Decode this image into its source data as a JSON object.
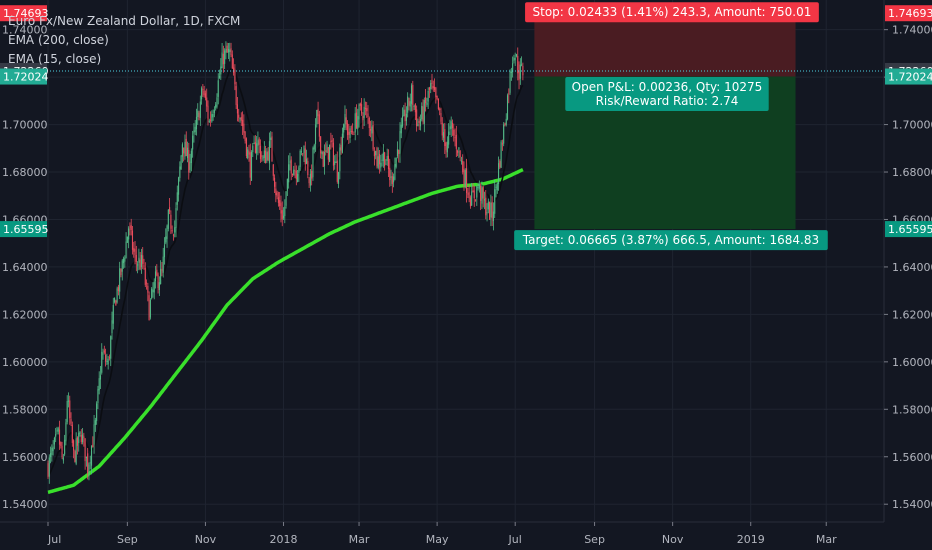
{
  "legend": {
    "symbol": "Euro Fx/New Zealand Dollar, 1D, FXCM",
    "ema_long": "EMA (200, close)",
    "ema_short": "EMA (15, close)"
  },
  "chart_data": {
    "type": "candlestick",
    "symbol": "EUR/NZD",
    "interval": "1D",
    "ylim": [
      1.5325,
      1.7525
    ],
    "y_ticks": [
      "1.54000",
      "1.56000",
      "1.58000",
      "1.60000",
      "1.62000",
      "1.64000",
      "1.66000",
      "1.68000",
      "1.70000",
      "1.72000",
      "1.74000"
    ],
    "x_ticks": [
      "Jul",
      "Sep",
      "Nov",
      "2018",
      "Mar",
      "May",
      "Jul",
      "Sep",
      "Nov",
      "2019",
      "Mar"
    ],
    "x_tick_index": [
      0,
      62,
      123,
      184,
      243,
      304,
      365,
      427,
      488,
      549,
      608
    ],
    "last_bar_index": 371,
    "price_line": 1.7226,
    "anchors": [
      {
        "i": 0,
        "p": 1.556
      },
      {
        "i": 8,
        "p": 1.569
      },
      {
        "i": 12,
        "p": 1.556
      },
      {
        "i": 15,
        "p": 1.585
      },
      {
        "i": 20,
        "p": 1.56
      },
      {
        "i": 26,
        "p": 1.57
      },
      {
        "i": 31,
        "p": 1.556
      },
      {
        "i": 37,
        "p": 1.573
      },
      {
        "i": 42,
        "p": 1.603
      },
      {
        "i": 47,
        "p": 1.599
      },
      {
        "i": 52,
        "p": 1.625
      },
      {
        "i": 58,
        "p": 1.64
      },
      {
        "i": 63,
        "p": 1.657
      },
      {
        "i": 68,
        "p": 1.643
      },
      {
        "i": 74,
        "p": 1.641
      },
      {
        "i": 79,
        "p": 1.622
      },
      {
        "i": 84,
        "p": 1.634
      },
      {
        "i": 89,
        "p": 1.637
      },
      {
        "i": 94,
        "p": 1.66
      },
      {
        "i": 99,
        "p": 1.657
      },
      {
        "i": 105,
        "p": 1.693
      },
      {
        "i": 110,
        "p": 1.684
      },
      {
        "i": 116,
        "p": 1.7
      },
      {
        "i": 121,
        "p": 1.715
      },
      {
        "i": 126,
        "p": 1.701
      },
      {
        "i": 131,
        "p": 1.712
      },
      {
        "i": 137,
        "p": 1.729
      },
      {
        "i": 142,
        "p": 1.73
      },
      {
        "i": 147,
        "p": 1.711
      },
      {
        "i": 152,
        "p": 1.7
      },
      {
        "i": 158,
        "p": 1.682
      },
      {
        "i": 163,
        "p": 1.694
      },
      {
        "i": 168,
        "p": 1.685
      },
      {
        "i": 174,
        "p": 1.691
      },
      {
        "i": 179,
        "p": 1.668
      },
      {
        "i": 184,
        "p": 1.661
      },
      {
        "i": 189,
        "p": 1.684
      },
      {
        "i": 194,
        "p": 1.681
      },
      {
        "i": 200,
        "p": 1.69
      },
      {
        "i": 205,
        "p": 1.675
      },
      {
        "i": 210,
        "p": 1.703
      },
      {
        "i": 215,
        "p": 1.685
      },
      {
        "i": 221,
        "p": 1.691
      },
      {
        "i": 226,
        "p": 1.68
      },
      {
        "i": 231,
        "p": 1.702
      },
      {
        "i": 236,
        "p": 1.695
      },
      {
        "i": 242,
        "p": 1.704
      },
      {
        "i": 247,
        "p": 1.706
      },
      {
        "i": 252,
        "p": 1.7
      },
      {
        "i": 257,
        "p": 1.685
      },
      {
        "i": 263,
        "p": 1.687
      },
      {
        "i": 268,
        "p": 1.676
      },
      {
        "i": 273,
        "p": 1.689
      },
      {
        "i": 278,
        "p": 1.702
      },
      {
        "i": 284,
        "p": 1.713
      },
      {
        "i": 289,
        "p": 1.7
      },
      {
        "i": 294,
        "p": 1.706
      },
      {
        "i": 299,
        "p": 1.716
      },
      {
        "i": 305,
        "p": 1.706
      },
      {
        "i": 310,
        "p": 1.691
      },
      {
        "i": 315,
        "p": 1.698
      },
      {
        "i": 320,
        "p": 1.691
      },
      {
        "i": 326,
        "p": 1.677
      },
      {
        "i": 331,
        "p": 1.668
      },
      {
        "i": 336,
        "p": 1.674
      },
      {
        "i": 341,
        "p": 1.666
      },
      {
        "i": 347,
        "p": 1.662
      },
      {
        "i": 352,
        "p": 1.682
      },
      {
        "i": 357,
        "p": 1.702
      },
      {
        "i": 362,
        "p": 1.725
      },
      {
        "i": 364,
        "p": 1.732
      },
      {
        "i": 368,
        "p": 1.722
      },
      {
        "i": 371,
        "p": 1.7226
      }
    ],
    "ema200": [
      {
        "i": 0,
        "p": 1.545
      },
      {
        "i": 20,
        "p": 1.548
      },
      {
        "i": 40,
        "p": 1.556
      },
      {
        "i": 60,
        "p": 1.568
      },
      {
        "i": 80,
        "p": 1.581
      },
      {
        "i": 100,
        "p": 1.595
      },
      {
        "i": 120,
        "p": 1.609
      },
      {
        "i": 140,
        "p": 1.624
      },
      {
        "i": 160,
        "p": 1.635
      },
      {
        "i": 180,
        "p": 1.642
      },
      {
        "i": 200,
        "p": 1.648
      },
      {
        "i": 220,
        "p": 1.654
      },
      {
        "i": 240,
        "p": 1.659
      },
      {
        "i": 260,
        "p": 1.663
      },
      {
        "i": 280,
        "p": 1.667
      },
      {
        "i": 300,
        "p": 1.671
      },
      {
        "i": 320,
        "p": 1.674
      },
      {
        "i": 340,
        "p": 1.675
      },
      {
        "i": 355,
        "p": 1.677
      },
      {
        "i": 371,
        "p": 1.681
      }
    ],
    "position": {
      "start_index": 380,
      "end_index": 584,
      "stop_price": 1.74693,
      "entry_price": 1.72024,
      "target_price": 1.65595,
      "stop_label": "Stop: 0.02433 (1.41%) 243.3, Amount: 750.01",
      "target_label": "Target: 0.06665 (3.87%) 666.5, Amount: 1684.83",
      "pnl_label": "Open P&L: 0.00236, Qty: 10275",
      "rr_label": "Risk/Reward Ratio: 2.74"
    },
    "price_tags": [
      {
        "label": "1.74693",
        "value": 1.74693,
        "color": "#f23645"
      },
      {
        "label": "1.72260",
        "value": 1.7226,
        "color": "#363a45"
      },
      {
        "label": "1.72024",
        "value": 1.72024,
        "color": "#22ab94"
      },
      {
        "label": "1.65595",
        "value": 1.65595,
        "color": "#089981"
      }
    ],
    "colors": {
      "background": "#131722",
      "up": "#53b987",
      "down": "#eb4d5c",
      "ema_long": "#39e02b",
      "ema_short": "#0b0d12",
      "stop_zone": "#4a1c22",
      "target_zone": "#0f3f20",
      "stop_label_bg": "#f23645",
      "target_label_bg": "#089981"
    }
  }
}
